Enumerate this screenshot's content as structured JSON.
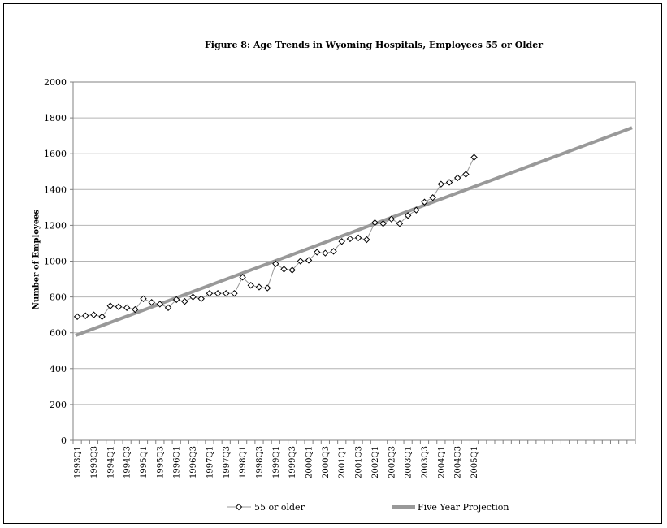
{
  "chart_data": {
    "type": "line",
    "title": "Figure 8: Age Trends in Wyoming Hospitals, Employees 55 or Older",
    "xlabel": "",
    "ylabel": "Number of Employees",
    "ylim": [
      0,
      2000
    ],
    "yticks": [
      0,
      200,
      400,
      600,
      800,
      1000,
      1200,
      1400,
      1600,
      1800,
      2000
    ],
    "grid": true,
    "legend_position": "bottom",
    "quarters_start": "1993Q1",
    "quarters_end": "2009Q4",
    "x_tick_labels": [
      "1993Q1",
      "1993Q3",
      "1994Q1",
      "1994Q3",
      "1995Q1",
      "1995Q3",
      "1996Q1",
      "1996Q3",
      "1997Q1",
      "1997Q3",
      "1998Q1",
      "1998Q3",
      "1999Q1",
      "1999Q3",
      "2000Q1",
      "2000Q3",
      "2001Q1",
      "2001Q3",
      "2002Q1",
      "2002Q3",
      "2003Q1",
      "2003Q3",
      "2004Q1",
      "2004Q3",
      "2005Q1"
    ],
    "series": [
      {
        "name": "55 or older",
        "style": "line-with-diamond-markers",
        "color": "#999999",
        "x": [
          "1993Q1",
          "1993Q2",
          "1993Q3",
          "1993Q4",
          "1994Q1",
          "1994Q2",
          "1994Q3",
          "1994Q4",
          "1995Q1",
          "1995Q2",
          "1995Q3",
          "1995Q4",
          "1996Q1",
          "1996Q2",
          "1996Q3",
          "1996Q4",
          "1997Q1",
          "1997Q2",
          "1997Q3",
          "1997Q4",
          "1998Q1",
          "1998Q2",
          "1998Q3",
          "1998Q4",
          "1999Q1",
          "1999Q2",
          "1999Q3",
          "1999Q4",
          "2000Q1",
          "2000Q2",
          "2000Q3",
          "2000Q4",
          "2001Q1",
          "2001Q2",
          "2001Q3",
          "2001Q4",
          "2002Q1",
          "2002Q2",
          "2002Q3",
          "2002Q4",
          "2003Q1",
          "2003Q2",
          "2003Q3",
          "2003Q4",
          "2004Q1",
          "2004Q2",
          "2004Q3",
          "2004Q4",
          "2005Q1"
        ],
        "values": [
          690,
          695,
          700,
          690,
          750,
          745,
          740,
          730,
          790,
          770,
          760,
          740,
          785,
          775,
          800,
          790,
          820,
          820,
          820,
          820,
          910,
          865,
          855,
          850,
          985,
          955,
          950,
          1000,
          1005,
          1050,
          1045,
          1055,
          1110,
          1125,
          1130,
          1120,
          1215,
          1210,
          1235,
          1210,
          1255,
          1285,
          1330,
          1355,
          1430,
          1440,
          1465,
          1485,
          1580
        ]
      },
      {
        "name": "Five Year Projection",
        "style": "thick-line",
        "color": "#999999",
        "x": [
          "1993Q1",
          "2009Q4"
        ],
        "values": [
          585,
          1745
        ]
      }
    ]
  }
}
